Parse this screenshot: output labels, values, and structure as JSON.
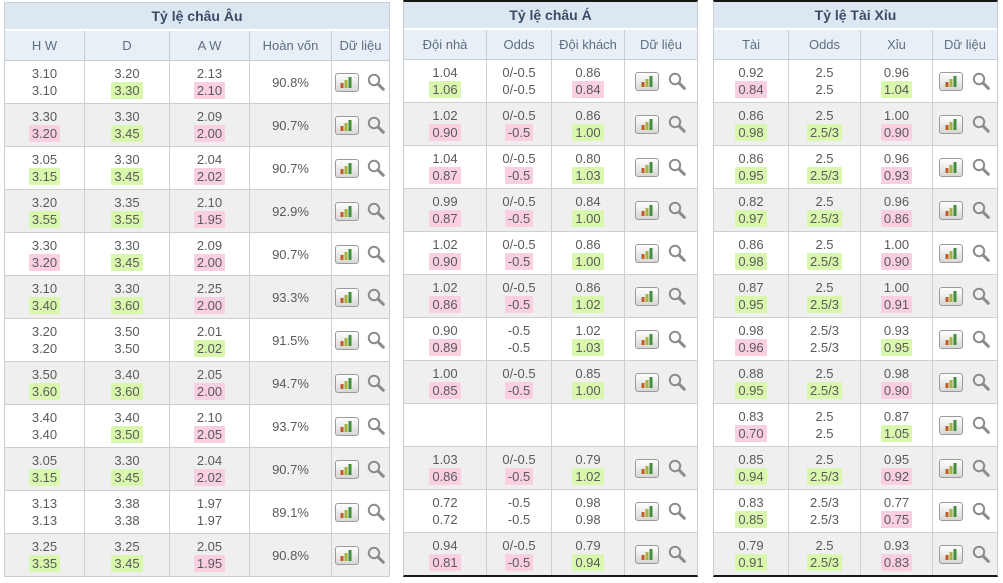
{
  "colors": {
    "table_title_bg": "#dce7f2",
    "column_header_bg": "#e9eff7",
    "row_stripe": "#efefef",
    "raise_highlight_green": "#d9f7ad",
    "drop_highlight_pink": "#f9cfe1",
    "border": "#c8cdd3",
    "value_text": "#5a5a5a",
    "title_text": "#3a4c66"
  },
  "icon_names": {
    "chart_button": "bar-chart-icon",
    "search_button": "magnifier-icon"
  },
  "cell_format": "[top_value, bottom_value, top_highlight, bottom_highlight] where g=green, p=pink",
  "tables": [
    {
      "key": "european",
      "title": "Tỷ lệ châu Âu",
      "columns": [
        "H W",
        "D",
        "A W",
        "Hoàn vốn",
        "Dữ liệu"
      ],
      "has_payout": true,
      "rows": [
        {
          "odds": [
            [
              "3.10",
              "3.10",
              "",
              ""
            ],
            [
              "3.20",
              "3.30",
              "",
              "g"
            ],
            [
              "2.13",
              "2.10",
              "",
              "p"
            ]
          ],
          "payout": "90.8%",
          "icons": true
        },
        {
          "odds": [
            [
              "3.30",
              "3.20",
              "",
              "p"
            ],
            [
              "3.30",
              "3.45",
              "",
              "g"
            ],
            [
              "2.09",
              "2.00",
              "",
              "p"
            ]
          ],
          "payout": "90.7%",
          "icons": true
        },
        {
          "odds": [
            [
              "3.05",
              "3.15",
              "",
              "g"
            ],
            [
              "3.30",
              "3.45",
              "",
              "g"
            ],
            [
              "2.04",
              "2.02",
              "",
              "p"
            ]
          ],
          "payout": "90.7%",
          "icons": true
        },
        {
          "odds": [
            [
              "3.20",
              "3.55",
              "",
              "g"
            ],
            [
              "3.35",
              "3.55",
              "",
              "g"
            ],
            [
              "2.10",
              "1.95",
              "",
              "p"
            ]
          ],
          "payout": "92.9%",
          "icons": true
        },
        {
          "odds": [
            [
              "3.30",
              "3.20",
              "",
              "p"
            ],
            [
              "3.30",
              "3.45",
              "",
              "g"
            ],
            [
              "2.09",
              "2.00",
              "",
              "p"
            ]
          ],
          "payout": "90.7%",
          "icons": true
        },
        {
          "odds": [
            [
              "3.10",
              "3.40",
              "",
              "g"
            ],
            [
              "3.30",
              "3.60",
              "",
              "g"
            ],
            [
              "2.25",
              "2.00",
              "",
              "p"
            ]
          ],
          "payout": "93.3%",
          "icons": true
        },
        {
          "odds": [
            [
              "3.20",
              "3.20",
              "",
              ""
            ],
            [
              "3.50",
              "3.50",
              "",
              ""
            ],
            [
              "2.01",
              "2.02",
              "",
              "g"
            ]
          ],
          "payout": "91.5%",
          "icons": true
        },
        {
          "odds": [
            [
              "3.50",
              "3.60",
              "",
              "g"
            ],
            [
              "3.40",
              "3.60",
              "",
              "g"
            ],
            [
              "2.05",
              "2.00",
              "",
              "p"
            ]
          ],
          "payout": "94.7%",
          "icons": true
        },
        {
          "odds": [
            [
              "3.40",
              "3.40",
              "",
              ""
            ],
            [
              "3.40",
              "3.50",
              "",
              "g"
            ],
            [
              "2.10",
              "2.05",
              "",
              "p"
            ]
          ],
          "payout": "93.7%",
          "icons": true
        },
        {
          "odds": [
            [
              "3.05",
              "3.15",
              "",
              "g"
            ],
            [
              "3.30",
              "3.45",
              "",
              "g"
            ],
            [
              "2.04",
              "2.02",
              "",
              "p"
            ]
          ],
          "payout": "90.7%",
          "icons": true
        },
        {
          "odds": [
            [
              "3.13",
              "3.13",
              "",
              ""
            ],
            [
              "3.38",
              "3.38",
              "",
              ""
            ],
            [
              "1.97",
              "1.97",
              "",
              ""
            ]
          ],
          "payout": "89.1%",
          "icons": true
        },
        {
          "odds": [
            [
              "3.25",
              "3.35",
              "",
              "g"
            ],
            [
              "3.25",
              "3.45",
              "",
              "g"
            ],
            [
              "2.05",
              "1.95",
              "",
              "p"
            ]
          ],
          "payout": "90.8%",
          "icons": true
        }
      ]
    },
    {
      "key": "asian",
      "title": "Tỷ lệ châu Á",
      "columns": [
        "Đội nhà",
        "Odds",
        "Đội khách",
        "Dữ liệu"
      ],
      "has_payout": false,
      "rows": [
        {
          "odds": [
            [
              "1.04",
              "1.06",
              "",
              "g"
            ],
            [
              "0/-0.5",
              "0/-0.5",
              "",
              ""
            ],
            [
              "0.86",
              "0.84",
              "",
              "p"
            ]
          ],
          "icons": true
        },
        {
          "odds": [
            [
              "1.02",
              "0.90",
              "",
              "p"
            ],
            [
              "0/-0.5",
              "-0.5",
              "",
              "p"
            ],
            [
              "0.86",
              "1.00",
              "",
              "g"
            ]
          ],
          "icons": true
        },
        {
          "odds": [
            [
              "1.04",
              "0.87",
              "",
              "p"
            ],
            [
              "0/-0.5",
              "-0.5",
              "",
              "p"
            ],
            [
              "0.80",
              "1.03",
              "",
              "g"
            ]
          ],
          "icons": true
        },
        {
          "odds": [
            [
              "0.99",
              "0.87",
              "",
              "p"
            ],
            [
              "0/-0.5",
              "-0.5",
              "",
              "p"
            ],
            [
              "0.84",
              "1.00",
              "",
              "g"
            ]
          ],
          "icons": true
        },
        {
          "odds": [
            [
              "1.02",
              "0.90",
              "",
              "p"
            ],
            [
              "0/-0.5",
              "-0.5",
              "",
              "p"
            ],
            [
              "0.86",
              "1.00",
              "",
              "g"
            ]
          ],
          "icons": true
        },
        {
          "odds": [
            [
              "1.02",
              "0.86",
              "",
              "p"
            ],
            [
              "0/-0.5",
              "-0.5",
              "",
              "p"
            ],
            [
              "0.86",
              "1.02",
              "",
              "g"
            ]
          ],
          "icons": true
        },
        {
          "odds": [
            [
              "0.90",
              "0.89",
              "",
              "p"
            ],
            [
              "-0.5",
              "-0.5",
              "",
              ""
            ],
            [
              "1.02",
              "1.03",
              "",
              "g"
            ]
          ],
          "icons": true
        },
        {
          "odds": [
            [
              "1.00",
              "0.85",
              "",
              "p"
            ],
            [
              "0/-0.5",
              "-0.5",
              "",
              "p"
            ],
            [
              "0.85",
              "1.00",
              "",
              "g"
            ]
          ],
          "icons": true
        },
        {
          "odds": [
            [],
            [],
            []
          ],
          "icons": false
        },
        {
          "odds": [
            [
              "1.03",
              "0.86",
              "",
              "p"
            ],
            [
              "0/-0.5",
              "-0.5",
              "",
              "p"
            ],
            [
              "0.79",
              "1.02",
              "",
              "g"
            ]
          ],
          "icons": true
        },
        {
          "odds": [
            [
              "0.72",
              "0.72",
              "",
              ""
            ],
            [
              "-0.5",
              "-0.5",
              "",
              ""
            ],
            [
              "0.98",
              "0.98",
              "",
              ""
            ]
          ],
          "icons": true
        },
        {
          "odds": [
            [
              "0.94",
              "0.81",
              "",
              "p"
            ],
            [
              "0/-0.5",
              "-0.5",
              "",
              "p"
            ],
            [
              "0.79",
              "0.94",
              "",
              "g"
            ]
          ],
          "icons": true
        }
      ]
    },
    {
      "key": "overunder",
      "title": "Tỷ lệ Tài Xỉu",
      "columns": [
        "Tài",
        "Odds",
        "Xỉu",
        "Dữ liệu"
      ],
      "has_payout": false,
      "rows": [
        {
          "odds": [
            [
              "0.92",
              "0.84",
              "",
              "p"
            ],
            [
              "2.5",
              "2.5",
              "",
              ""
            ],
            [
              "0.96",
              "1.04",
              "",
              "g"
            ]
          ],
          "icons": true
        },
        {
          "odds": [
            [
              "0.86",
              "0.98",
              "",
              "g"
            ],
            [
              "2.5",
              "2.5/3",
              "",
              "g"
            ],
            [
              "1.00",
              "0.90",
              "",
              "p"
            ]
          ],
          "icons": true
        },
        {
          "odds": [
            [
              "0.86",
              "0.95",
              "",
              "g"
            ],
            [
              "2.5",
              "2.5/3",
              "",
              "g"
            ],
            [
              "0.96",
              "0.93",
              "",
              "p"
            ]
          ],
          "icons": true
        },
        {
          "odds": [
            [
              "0.82",
              "0.97",
              "",
              "g"
            ],
            [
              "2.5",
              "2.5/3",
              "",
              "g"
            ],
            [
              "0.96",
              "0.86",
              "",
              "p"
            ]
          ],
          "icons": true
        },
        {
          "odds": [
            [
              "0.86",
              "0.98",
              "",
              "g"
            ],
            [
              "2.5",
              "2.5/3",
              "",
              "g"
            ],
            [
              "1.00",
              "0.90",
              "",
              "p"
            ]
          ],
          "icons": true
        },
        {
          "odds": [
            [
              "0.87",
              "0.95",
              "",
              "g"
            ],
            [
              "2.5",
              "2.5/3",
              "",
              "g"
            ],
            [
              "1.00",
              "0.91",
              "",
              "p"
            ]
          ],
          "icons": true
        },
        {
          "odds": [
            [
              "0.98",
              "0.96",
              "",
              "p"
            ],
            [
              "2.5/3",
              "2.5/3",
              "",
              ""
            ],
            [
              "0.93",
              "0.95",
              "",
              "g"
            ]
          ],
          "icons": true
        },
        {
          "odds": [
            [
              "0.88",
              "0.95",
              "",
              "g"
            ],
            [
              "2.5",
              "2.5/3",
              "",
              "g"
            ],
            [
              "0.98",
              "0.90",
              "",
              "p"
            ]
          ],
          "icons": true
        },
        {
          "odds": [
            [
              "0.83",
              "0.70",
              "",
              "p"
            ],
            [
              "2.5",
              "2.5",
              "",
              ""
            ],
            [
              "0.87",
              "1.05",
              "",
              "g"
            ]
          ],
          "icons": true
        },
        {
          "odds": [
            [
              "0.85",
              "0.94",
              "",
              "g"
            ],
            [
              "2.5",
              "2.5/3",
              "",
              "g"
            ],
            [
              "0.95",
              "0.92",
              "",
              "p"
            ]
          ],
          "icons": true
        },
        {
          "odds": [
            [
              "0.83",
              "0.85",
              "",
              "g"
            ],
            [
              "2.5/3",
              "2.5/3",
              "",
              ""
            ],
            [
              "0.77",
              "0.75",
              "",
              "p"
            ]
          ],
          "icons": true
        },
        {
          "odds": [
            [
              "0.79",
              "0.91",
              "",
              "g"
            ],
            [
              "2.5",
              "2.5/3",
              "",
              "g"
            ],
            [
              "0.93",
              "0.83",
              "",
              "p"
            ]
          ],
          "icons": true
        }
      ]
    }
  ]
}
